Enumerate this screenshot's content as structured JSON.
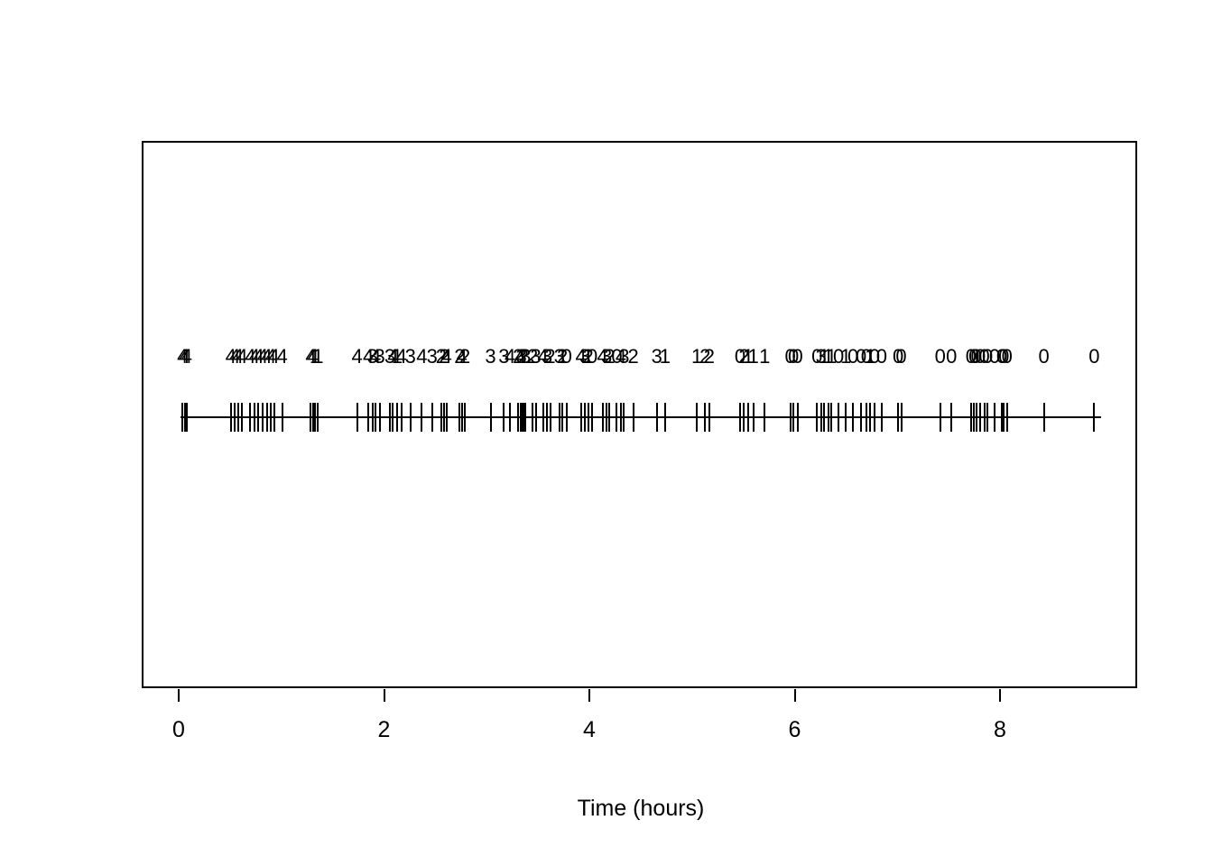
{
  "figure": {
    "background_color": "#ffffff",
    "stroke_color": "#000000"
  },
  "chart_data": {
    "type": "scatter",
    "subtype": "event-rug-plot",
    "title": "",
    "xlabel": "Time (hours)",
    "ylabel": "",
    "xlim": [
      -0.35,
      9.35
    ],
    "xticks": [
      0,
      2,
      4,
      6,
      8
    ],
    "grid": false,
    "legend": false,
    "description": "Event times shown as vertical rug ticks crossing a horizontal baseline; each event has an integer mark (0-4) printed above it. Marks are mostly 4 near t=0, mixed 1-4 in the middle, and 0 near t=9.",
    "events": [
      {
        "t": 0.02,
        "label": "4"
      },
      {
        "t": 0.04,
        "label": "4"
      },
      {
        "t": 0.06,
        "label": "4"
      },
      {
        "t": 0.49,
        "label": "4"
      },
      {
        "t": 0.53,
        "label": "4"
      },
      {
        "t": 0.56,
        "label": "4"
      },
      {
        "t": 0.6,
        "label": "4"
      },
      {
        "t": 0.68,
        "label": "4"
      },
      {
        "t": 0.72,
        "label": "4"
      },
      {
        "t": 0.76,
        "label": "4"
      },
      {
        "t": 0.8,
        "label": "4"
      },
      {
        "t": 0.84,
        "label": "4"
      },
      {
        "t": 0.88,
        "label": "4"
      },
      {
        "t": 0.91,
        "label": "4"
      },
      {
        "t": 0.99,
        "label": "4"
      },
      {
        "t": 1.27,
        "label": "4"
      },
      {
        "t": 1.29,
        "label": "4"
      },
      {
        "t": 1.31,
        "label": "1"
      },
      {
        "t": 1.34,
        "label": "1"
      },
      {
        "t": 1.72,
        "label": "4"
      },
      {
        "t": 1.83,
        "label": "4"
      },
      {
        "t": 1.87,
        "label": "3"
      },
      {
        "t": 1.9,
        "label": "4"
      },
      {
        "t": 1.94,
        "label": "3"
      },
      {
        "t": 2.04,
        "label": "3"
      },
      {
        "t": 2.07,
        "label": "4"
      },
      {
        "t": 2.11,
        "label": "1"
      },
      {
        "t": 2.15,
        "label": "4"
      },
      {
        "t": 2.24,
        "label": "3"
      },
      {
        "t": 2.35,
        "label": "4"
      },
      {
        "t": 2.45,
        "label": "3"
      },
      {
        "t": 2.54,
        "label": "2"
      },
      {
        "t": 2.57,
        "label": "2"
      },
      {
        "t": 2.59,
        "label": "4"
      },
      {
        "t": 2.72,
        "label": "2"
      },
      {
        "t": 2.74,
        "label": "4"
      },
      {
        "t": 2.77,
        "label": "2"
      },
      {
        "t": 3.02,
        "label": "3"
      },
      {
        "t": 3.15,
        "label": "3"
      },
      {
        "t": 3.21,
        "label": "4"
      },
      {
        "t": 3.29,
        "label": "2"
      },
      {
        "t": 3.31,
        "label": "4"
      },
      {
        "t": 3.32,
        "label": "3"
      },
      {
        "t": 3.34,
        "label": "2"
      },
      {
        "t": 3.36,
        "label": "3"
      },
      {
        "t": 3.43,
        "label": "2"
      },
      {
        "t": 3.46,
        "label": "3"
      },
      {
        "t": 3.53,
        "label": "4"
      },
      {
        "t": 3.57,
        "label": "3"
      },
      {
        "t": 3.6,
        "label": "2"
      },
      {
        "t": 3.69,
        "label": "3"
      },
      {
        "t": 3.72,
        "label": "2"
      },
      {
        "t": 3.76,
        "label": "0"
      },
      {
        "t": 3.9,
        "label": "4"
      },
      {
        "t": 3.94,
        "label": "3"
      },
      {
        "t": 3.97,
        "label": "2"
      },
      {
        "t": 4.01,
        "label": "0"
      },
      {
        "t": 4.11,
        "label": "4"
      },
      {
        "t": 4.15,
        "label": "3"
      },
      {
        "t": 4.18,
        "label": "2"
      },
      {
        "t": 4.25,
        "label": "0"
      },
      {
        "t": 4.29,
        "label": "4"
      },
      {
        "t": 4.32,
        "label": "3"
      },
      {
        "t": 4.41,
        "label": "2"
      },
      {
        "t": 4.64,
        "label": "3"
      },
      {
        "t": 4.72,
        "label": "1"
      },
      {
        "t": 5.03,
        "label": "1"
      },
      {
        "t": 5.11,
        "label": "2"
      },
      {
        "t": 5.15,
        "label": "2"
      },
      {
        "t": 5.45,
        "label": "0"
      },
      {
        "t": 5.49,
        "label": "2"
      },
      {
        "t": 5.53,
        "label": "1"
      },
      {
        "t": 5.58,
        "label": "1"
      },
      {
        "t": 5.69,
        "label": "1"
      },
      {
        "t": 5.94,
        "label": "0"
      },
      {
        "t": 5.97,
        "label": "0"
      },
      {
        "t": 6.01,
        "label": "0"
      },
      {
        "t": 6.2,
        "label": "0"
      },
      {
        "t": 6.24,
        "label": "3"
      },
      {
        "t": 6.27,
        "label": "1"
      },
      {
        "t": 6.31,
        "label": "1"
      },
      {
        "t": 6.34,
        "label": "1"
      },
      {
        "t": 6.41,
        "label": "0"
      },
      {
        "t": 6.48,
        "label": "1"
      },
      {
        "t": 6.55,
        "label": "0"
      },
      {
        "t": 6.63,
        "label": "0"
      },
      {
        "t": 6.68,
        "label": "0"
      },
      {
        "t": 6.72,
        "label": "1"
      },
      {
        "t": 6.76,
        "label": "0"
      },
      {
        "t": 6.83,
        "label": "0"
      },
      {
        "t": 6.99,
        "label": "0"
      },
      {
        "t": 7.02,
        "label": "0"
      },
      {
        "t": 7.4,
        "label": "0"
      },
      {
        "t": 7.51,
        "label": "0"
      },
      {
        "t": 7.7,
        "label": "0"
      },
      {
        "t": 7.73,
        "label": "0"
      },
      {
        "t": 7.75,
        "label": "0"
      },
      {
        "t": 7.79,
        "label": "0"
      },
      {
        "t": 7.83,
        "label": "0"
      },
      {
        "t": 7.86,
        "label": "0"
      },
      {
        "t": 7.93,
        "label": "0"
      },
      {
        "t": 8.0,
        "label": "0"
      },
      {
        "t": 8.02,
        "label": "0"
      },
      {
        "t": 8.05,
        "label": "0"
      },
      {
        "t": 8.41,
        "label": "0"
      },
      {
        "t": 8.9,
        "label": "0"
      }
    ],
    "baseline_extent": [
      0.0,
      8.97
    ]
  }
}
